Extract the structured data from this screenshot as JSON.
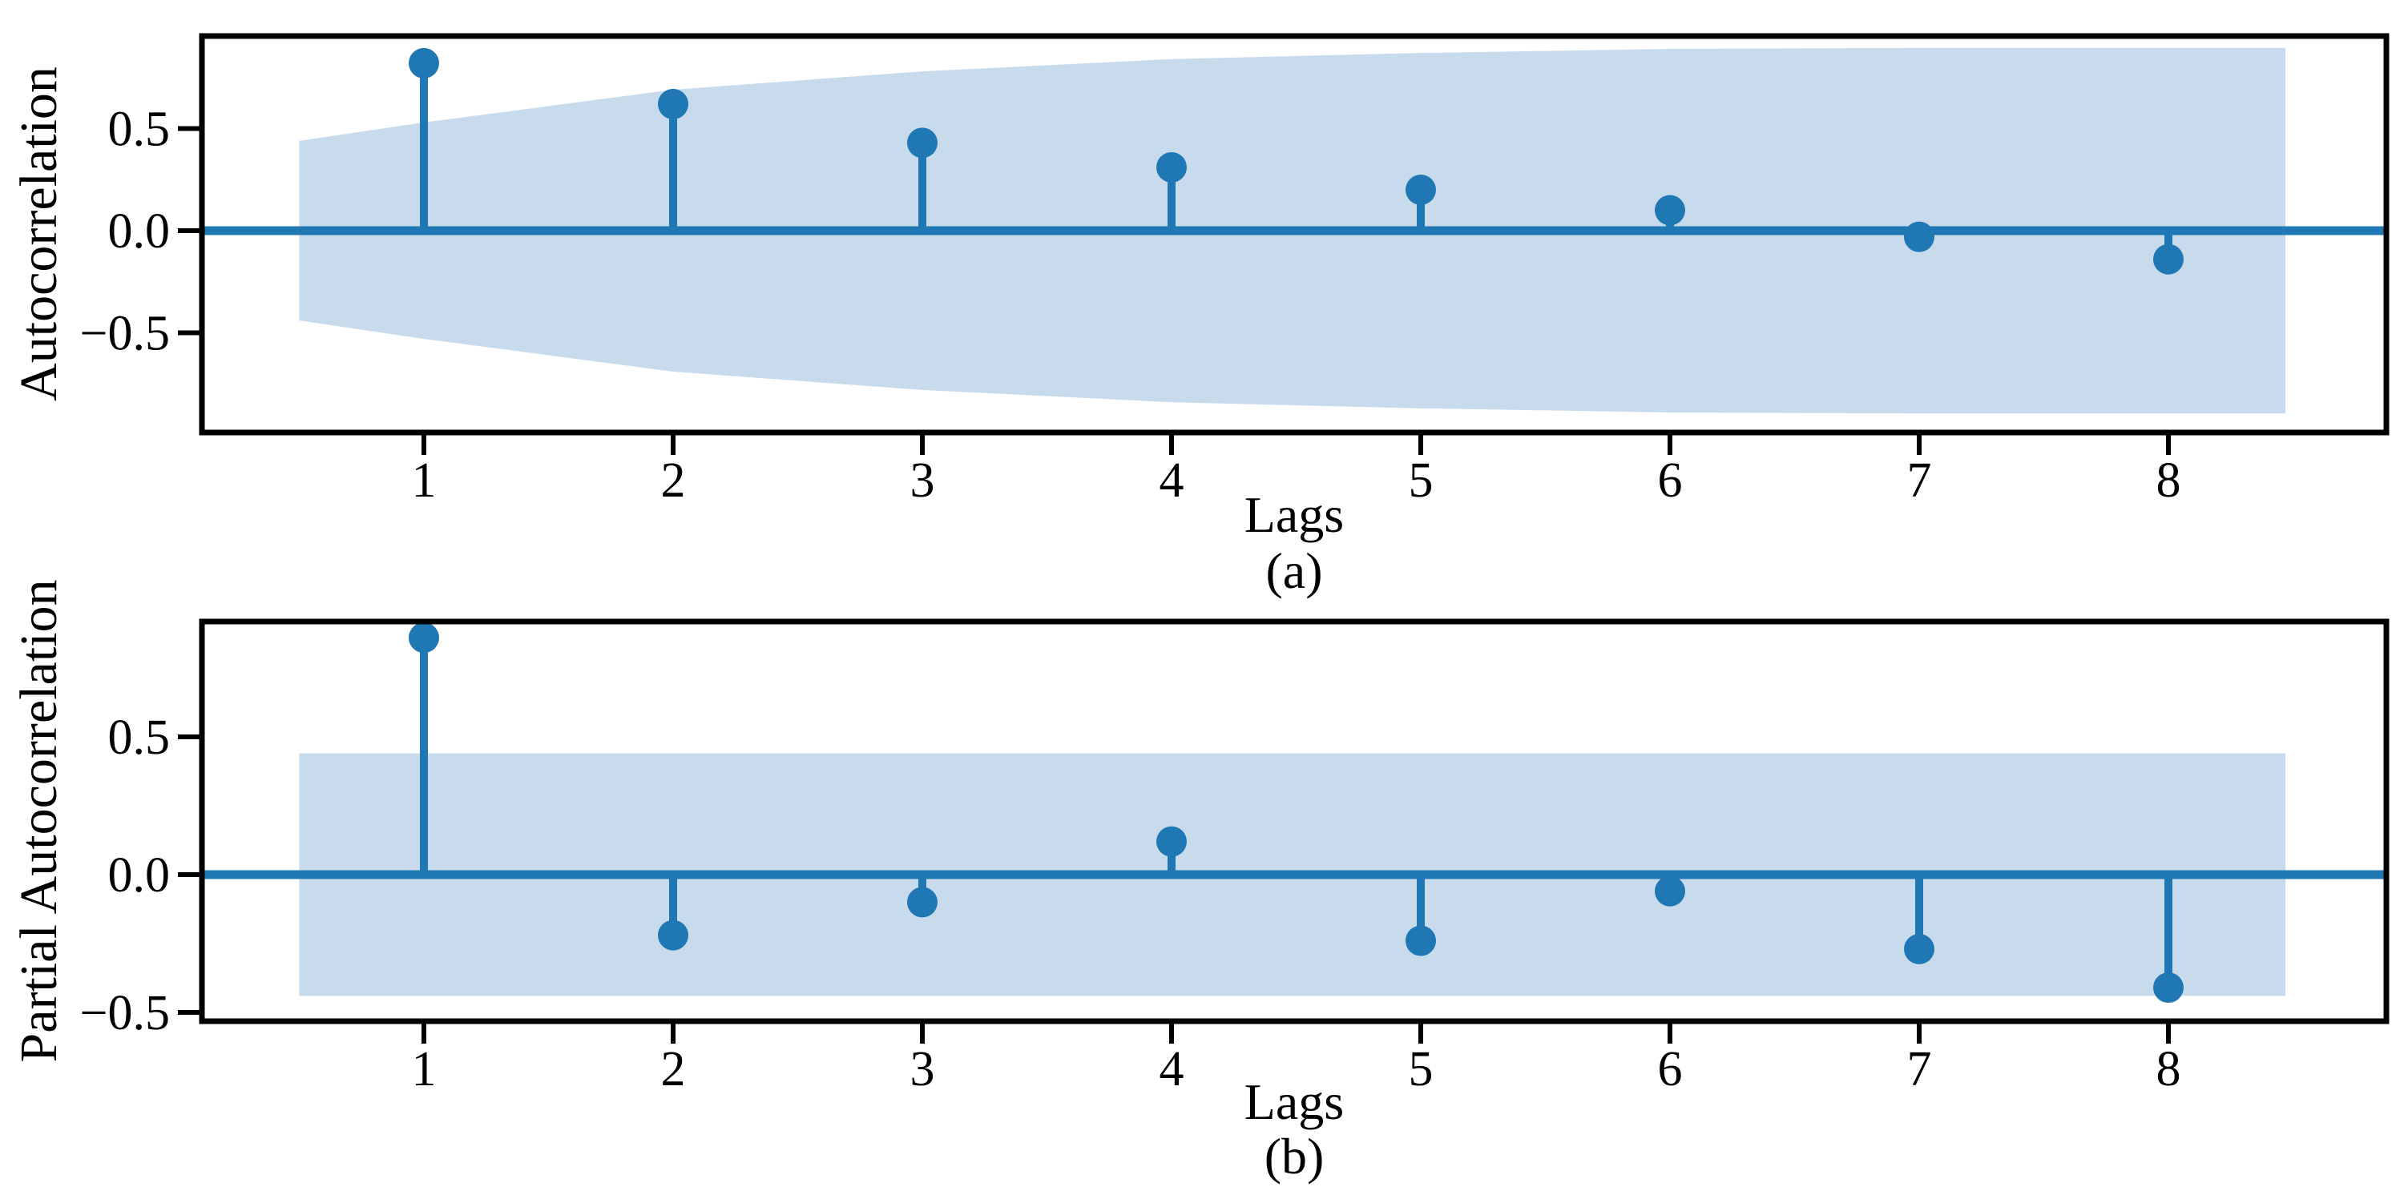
{
  "figure": {
    "background": "#ffffff",
    "panels": [
      {
        "caption": "(a)",
        "ylabel": "Autocorrelation",
        "xlabel": "Lags"
      },
      {
        "caption": "(b)",
        "ylabel": "Partial Autocorrelation",
        "xlabel": "Lags"
      }
    ]
  },
  "chart_data": [
    {
      "type": "stem",
      "subplot": "(a)",
      "ylabel": "Autocorrelation",
      "xlabel": "Lags",
      "caption": "(a)",
      "x": [
        1,
        2,
        3,
        4,
        5,
        6,
        7,
        8
      ],
      "values": [
        0.82,
        0.62,
        0.43,
        0.31,
        0.2,
        0.1,
        -0.03,
        -0.14
      ],
      "confidence_band": {
        "x": [
          0.5,
          1,
          2,
          3,
          4,
          5,
          6,
          7,
          8,
          8.47
        ],
        "upper": [
          0.44,
          0.53,
          0.69,
          0.78,
          0.84,
          0.87,
          0.89,
          0.895,
          0.895,
          0.895
        ],
        "lower": [
          -0.44,
          -0.53,
          -0.69,
          -0.78,
          -0.84,
          -0.87,
          -0.89,
          -0.895,
          -0.895,
          -0.895
        ]
      },
      "ytick_values": [
        0.5,
        0.0,
        -0.5
      ],
      "ytick_labels": [
        "0.5",
        "0.0",
        "−0.5"
      ],
      "xtick_labels": [
        "1",
        "2",
        "3",
        "4",
        "5",
        "6",
        "7",
        "8"
      ],
      "ylim": [
        -0.99,
        0.95
      ],
      "xlim": [
        0.11,
        8.87
      ],
      "grid": false,
      "legend": null,
      "colors": {
        "stem": "#1f77b4",
        "marker": "#1f77b4",
        "band": "#c8dbec",
        "axis": "#000000"
      }
    },
    {
      "type": "stem",
      "subplot": "(b)",
      "ylabel": "Partial Autocorrelation",
      "xlabel": "Lags",
      "caption": "(b)",
      "x": [
        1,
        2,
        3,
        4,
        5,
        6,
        7,
        8
      ],
      "values": [
        0.86,
        -0.22,
        -0.1,
        0.12,
        -0.24,
        -0.06,
        -0.27,
        -0.41
      ],
      "confidence_band": {
        "x": [
          0.5,
          8.47
        ],
        "upper": [
          0.44,
          0.44
        ],
        "lower": [
          -0.44,
          -0.44
        ]
      },
      "ytick_values": [
        0.5,
        0.0,
        -0.5
      ],
      "ytick_labels": [
        "0.5",
        "0.0",
        "−0.5"
      ],
      "xtick_labels": [
        "1",
        "2",
        "3",
        "4",
        "5",
        "6",
        "7",
        "8"
      ],
      "ylim": [
        -0.53,
        0.92
      ],
      "xlim": [
        0.11,
        8.87
      ],
      "grid": false,
      "legend": null,
      "colors": {
        "stem": "#1f77b4",
        "marker": "#1f77b4",
        "band": "#c8dbec",
        "axis": "#000000"
      }
    }
  ]
}
